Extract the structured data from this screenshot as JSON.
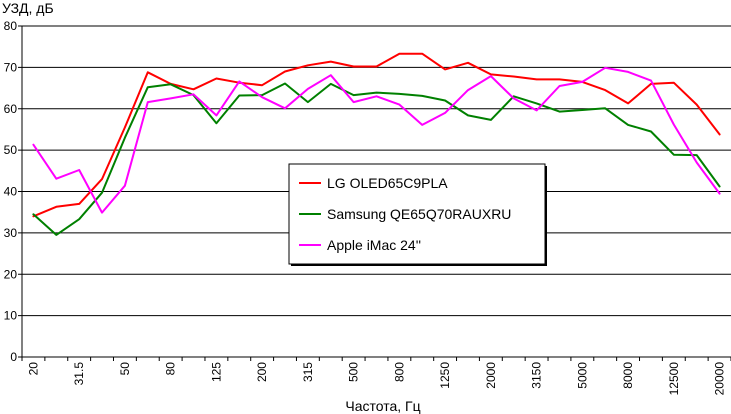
{
  "chart_data": {
    "type": "line",
    "ylabel": "УЗД, дБ",
    "xlabel": "Частота, Гц",
    "ylim": [
      0,
      80
    ],
    "yticks": [
      0,
      10,
      20,
      30,
      40,
      50,
      60,
      70,
      80
    ],
    "grid": true,
    "legend_position": "center",
    "x": [
      "20",
      "25",
      "31.5",
      "40",
      "50",
      "63",
      "80",
      "100",
      "125",
      "160",
      "200",
      "250",
      "315",
      "400",
      "500",
      "630",
      "800",
      "1000",
      "1250",
      "1600",
      "2000",
      "2500",
      "3150",
      "4000",
      "5000",
      "6300",
      "8000",
      "10000",
      "12500",
      "16000",
      "20000"
    ],
    "x_tick_labels": [
      "20",
      "",
      "31.5",
      "",
      "50",
      "",
      "80",
      "",
      "125",
      "",
      "200",
      "",
      "315",
      "",
      "500",
      "",
      "800",
      "",
      "1250",
      "",
      "2000",
      "",
      "3150",
      "",
      "5000",
      "",
      "8000",
      "",
      "12500",
      "",
      "20000"
    ],
    "series": [
      {
        "name": "LG OLED65C9PLA",
        "color": "#ff0000",
        "values": [
          34,
          36.3,
          37,
          43,
          55.5,
          68.8,
          66,
          64.7,
          67.3,
          66.3,
          65.7,
          69,
          70.5,
          71.4,
          70.2,
          70.2,
          73.3,
          73.3,
          69.5,
          71.1,
          68.3,
          67.8,
          67.1,
          67.1,
          66.5,
          64.5,
          61.3,
          66,
          66.3,
          61,
          53.8
        ]
      },
      {
        "name": "Samsung QE65Q70RAUXRU",
        "color": "#008000",
        "values": [
          34.5,
          29.5,
          33.3,
          39.7,
          53,
          65.2,
          65.9,
          63.3,
          56.5,
          63.2,
          63.3,
          66.1,
          61.6,
          66,
          63.3,
          63.9,
          63.6,
          63.1,
          62,
          58.4,
          57.3,
          63,
          61.3,
          59.3,
          59.7,
          60.1,
          56.1,
          54.5,
          48.9,
          48.8,
          41.2
        ]
      },
      {
        "name": "Apple iMac 24''",
        "color": "#ff00ff",
        "values": [
          51.3,
          43.1,
          45.2,
          34.9,
          41.4,
          61.6,
          62.5,
          63.5,
          58.4,
          66.6,
          62.8,
          60.1,
          64.8,
          68.1,
          61.6,
          63,
          61,
          56.1,
          59,
          64.5,
          67.9,
          62.5,
          59.6,
          65.5,
          66.5,
          69.9,
          68.9,
          66.8,
          56.2,
          47,
          39.5
        ]
      }
    ]
  }
}
